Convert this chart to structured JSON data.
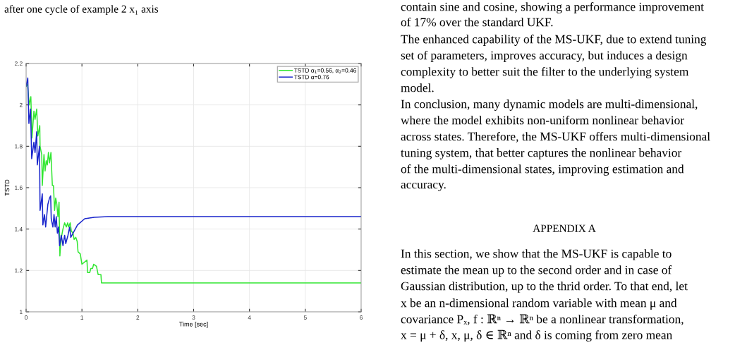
{
  "chart_data": {
    "type": "line",
    "xlabel": "Time [sec]",
    "ylabel": "TSTD",
    "xlim": [
      0,
      6
    ],
    "ylim": [
      1,
      2.2
    ],
    "xticks": [
      0,
      1,
      2,
      3,
      4,
      5,
      6
    ],
    "yticks": [
      1,
      1.2,
      1.4,
      1.6,
      1.8,
      2,
      2.2
    ],
    "grid": true,
    "legend": "top right",
    "line_style": "solid",
    "series": [
      {
        "name": "TSTD α$_{1}$=0.56, α$_{2}$=0.46",
        "color": "#33e633",
        "x": [
          0,
          0.025,
          0.055,
          0.085,
          0.105,
          0.14,
          0.16,
          0.19,
          0.21,
          0.245,
          0.25,
          0.28,
          0.29,
          0.32,
          0.34,
          0.36,
          0.38,
          0.4,
          0.42,
          0.445,
          0.47,
          0.49,
          0.51,
          0.53,
          0.55,
          0.57,
          0.59,
          0.605,
          0.625,
          0.66,
          0.69,
          0.72,
          0.745,
          0.76,
          0.79,
          0.81,
          0.84,
          0.86,
          0.89,
          0.915,
          0.93,
          0.97,
          1.0,
          1.09,
          1.1,
          1.14,
          1.16,
          1.19,
          1.21,
          1.26,
          1.29,
          1.34,
          1.35,
          1.64,
          2.5,
          3.5,
          4.5,
          6
        ],
        "values": [
          2.09,
          2.1,
          2.0,
          2.04,
          1.84,
          1.97,
          1.93,
          1.98,
          1.85,
          1.9,
          1.8,
          1.76,
          1.61,
          1.76,
          1.68,
          1.73,
          1.71,
          1.77,
          1.72,
          1.77,
          1.61,
          1.61,
          1.49,
          1.55,
          1.52,
          1.46,
          1.53,
          1.27,
          1.35,
          1.4,
          1.43,
          1.41,
          1.43,
          1.41,
          1.43,
          1.39,
          1.38,
          1.35,
          1.36,
          1.34,
          1.29,
          1.28,
          1.23,
          1.25,
          1.19,
          1.19,
          1.21,
          1.21,
          1.23,
          1.22,
          1.18,
          1.18,
          1.14,
          1.14,
          1.14,
          1.14,
          1.14,
          1.14
        ]
      },
      {
        "name": "TSTD α=0.76",
        "color": "#1a26cc",
        "x": [
          0,
          0.03,
          0.05,
          0.08,
          0.1,
          0.14,
          0.16,
          0.19,
          0.2,
          0.24,
          0.25,
          0.29,
          0.3,
          0.33,
          0.35,
          0.39,
          0.42,
          0.44,
          0.45,
          0.48,
          0.5,
          0.52,
          0.54,
          0.56,
          0.58,
          0.6,
          0.63,
          0.66,
          0.69,
          0.71,
          0.75,
          0.78,
          0.8,
          0.84,
          0.92,
          1.05,
          1.22,
          1.47,
          3,
          6
        ],
        "values": [
          2.09,
          2.13,
          1.91,
          1.98,
          1.74,
          1.82,
          1.77,
          1.87,
          1.71,
          1.8,
          1.49,
          1.57,
          1.42,
          1.47,
          1.41,
          1.52,
          1.55,
          1.56,
          1.45,
          1.41,
          1.47,
          1.41,
          1.46,
          1.38,
          1.41,
          1.32,
          1.37,
          1.32,
          1.37,
          1.33,
          1.37,
          1.41,
          1.36,
          1.38,
          1.42,
          1.45,
          1.457,
          1.46,
          1.46,
          1.46
        ]
      }
    ],
    "annotations": [
      "after one cycle of example 2 x₁ axis",
      "contain sine and cosine, showing a performance improvement",
      "of 17% over the standard UKF.",
      "The enhanced capability of the MS-UKF, due to extend tuning",
      "set of parameters, improves accuracy, but induces a design",
      "complexity to better suit the filter to the underlying system",
      "model.",
      "In conclusion, many dynamic models are multi-dimensional,",
      "where the model exhibits non-uniform nonlinear behavior",
      "across states. Therefore, the MS-UKF offers multi-dimensional",
      "tuning system, that better captures the nonlinear behavior",
      "of the multi-dimensional states, improving estimation and",
      "accuracy.",
      "APPENDIX A",
      "In this section, we show that the MS-UKF is capable to",
      "estimate the mean up to the second order and in case of",
      "Gaussian distribution, up to the thrid order. To that end, let",
      "x be an n-dimensional random variable with mean μ and",
      "covariance Pₓ, f : ℝⁿ → ℝⁿ be a nonlinear transformation,",
      "x = μ + δ, x, μ, δ ∈ ℝⁿ and δ is coming from zero mean"
    ]
  }
}
